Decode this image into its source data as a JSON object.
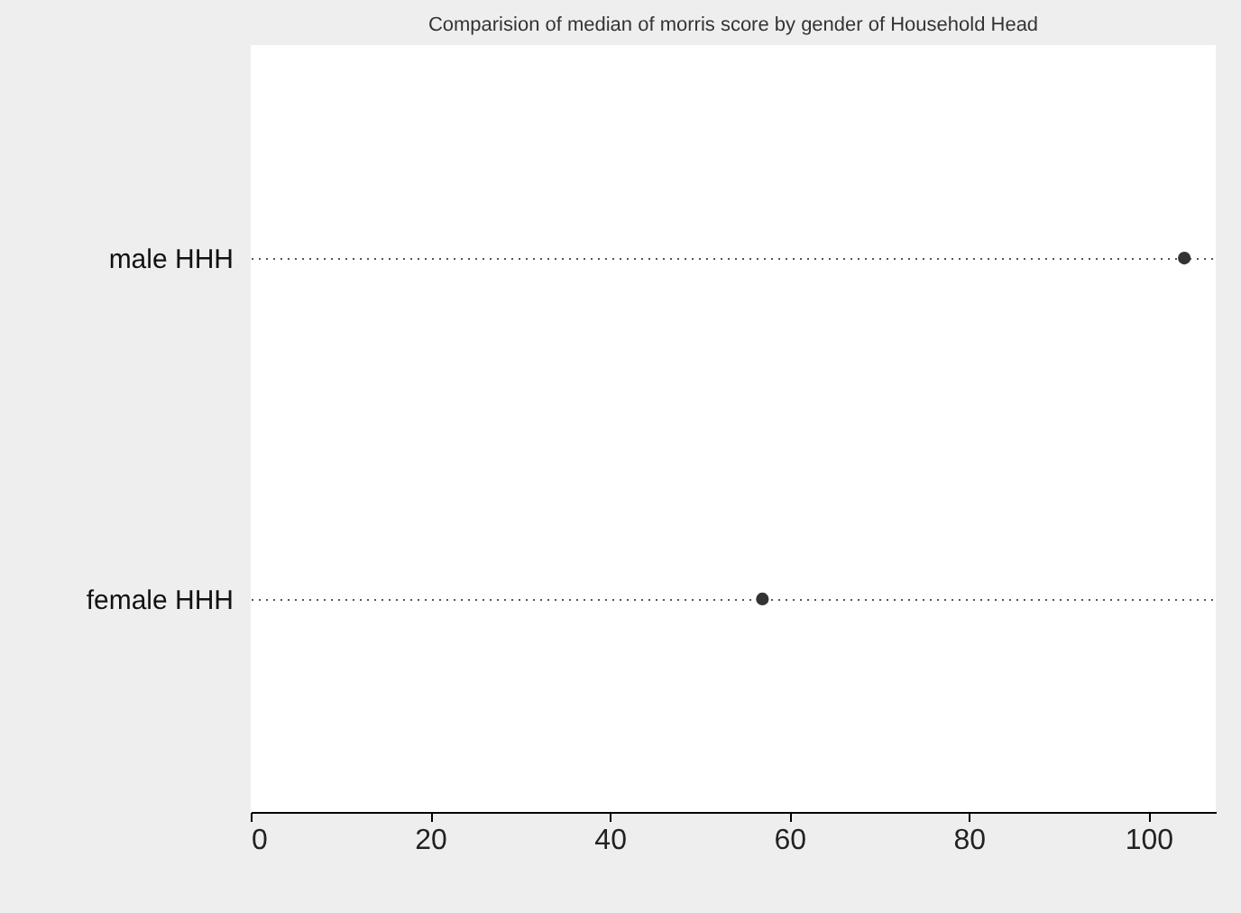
{
  "chart_data": {
    "type": "scatter",
    "orientation": "horizontal",
    "title": "Comparision of median of  morris score by gender of Household Head",
    "categories": [
      "male HHH",
      "female HHH"
    ],
    "series": [
      {
        "color": "#333333",
        "values": [
          104,
          57
        ]
      }
    ],
    "xlim": [
      0,
      107.5
    ],
    "xticks": [
      0,
      20,
      40,
      60,
      80,
      100
    ],
    "grid": "y",
    "line_style": "dotted",
    "marker": "circle"
  }
}
